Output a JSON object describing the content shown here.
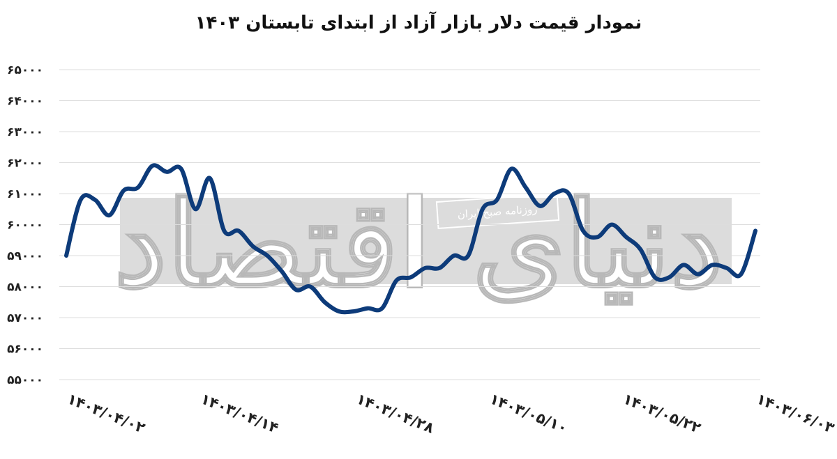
{
  "chart_data": {
    "type": "line",
    "title": "نمودار قیمت دلار بازار آزاد از ابتدای تابستان ۱۴۰۳",
    "xlabel": "",
    "ylabel": "",
    "ylim": [
      55000,
      65000
    ],
    "yticks": [
      55000,
      56000,
      57000,
      58000,
      59000,
      60000,
      61000,
      62000,
      63000,
      64000,
      65000
    ],
    "ytick_labels": [
      "۵۵۰۰۰",
      "۵۶۰۰۰",
      "۵۷۰۰۰",
      "۵۸۰۰۰",
      "۵۹۰۰۰",
      "۶۰۰۰۰",
      "۶۱۰۰۰",
      "۶۲۰۰۰",
      "۶۳۰۰۰",
      "۶۴۰۰۰",
      "۶۵۰۰۰"
    ],
    "x_tick_labels": [
      "۱۴۰۳/۰۴/۰۲",
      "۱۴۰۳/۰۴/۱۴",
      "۱۴۰۳/۰۴/۲۸",
      "۱۴۰۳/۰۵/۱۰",
      "۱۴۰۳/۰۵/۲۲",
      "۱۴۰۳/۰۶/۰۳"
    ],
    "x_tick_index": [
      0,
      12,
      26,
      38,
      50,
      62
    ],
    "grid": true,
    "legend": "none",
    "line_color": "#0d3b7a",
    "series": [
      {
        "name": "",
        "values": [
          59000,
          60800,
          60800,
          60300,
          61100,
          61200,
          61900,
          61700,
          61800,
          60500,
          61500,
          59800,
          59800,
          59300,
          59000,
          58500,
          57900,
          58000,
          57500,
          57200,
          57200,
          57300,
          57300,
          58200,
          58300,
          58600,
          58600,
          59000,
          59000,
          60500,
          60800,
          61800,
          61200,
          60600,
          61000,
          61000,
          59800,
          59600,
          60000,
          59600,
          59200,
          58300,
          58300,
          58700,
          58400,
          58700,
          58600,
          58400,
          59800
        ]
      }
    ]
  },
  "watermark": {
    "logo_text": "دنیای اقتصاد",
    "badge_text": "روزنامه صبح ایران"
  }
}
